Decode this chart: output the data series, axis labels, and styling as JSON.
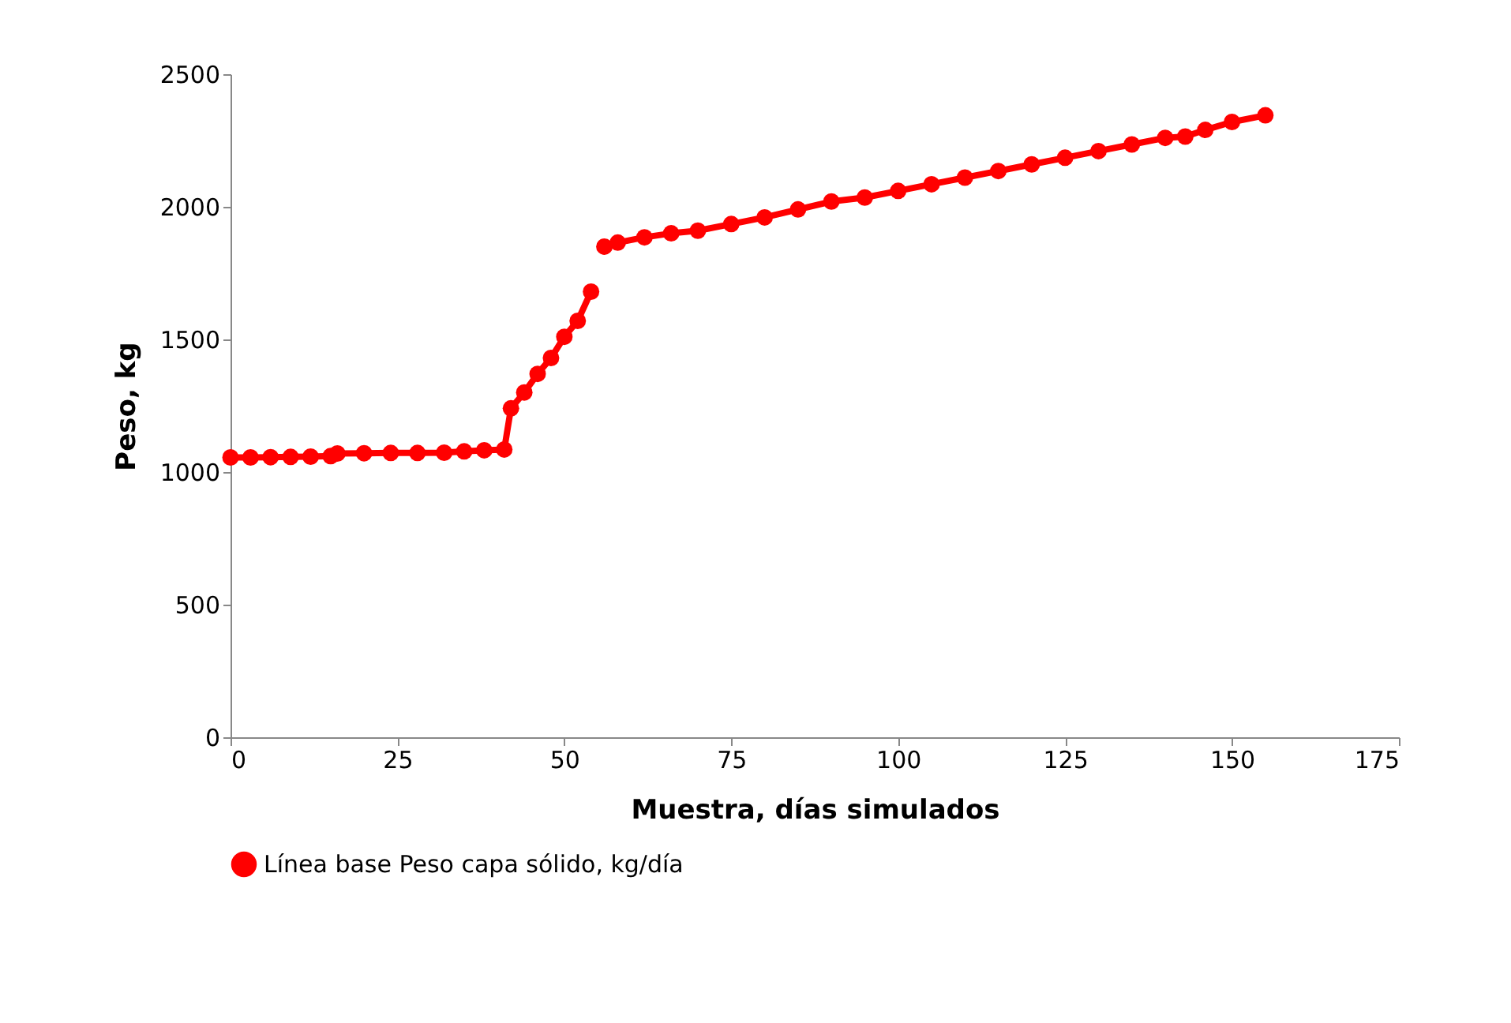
{
  "chart_data": {
    "type": "line",
    "xlabel": "Muestra, días simulados",
    "ylabel": "Peso, kg",
    "x": [
      0,
      3,
      6,
      9,
      12,
      15,
      16,
      20,
      24,
      28,
      32,
      35,
      38,
      41,
      42,
      44,
      46,
      48,
      50,
      52,
      54,
      55,
      56,
      58,
      62,
      66,
      70,
      75,
      80,
      85,
      90,
      95,
      100,
      105,
      110,
      115,
      120,
      125,
      130,
      135,
      140,
      143,
      146,
      150,
      155
    ],
    "series": [
      {
        "name": "Línea base Peso capa sólido, kg/día",
        "color": "#ff0000",
        "values": [
          1055,
          1055,
          1056,
          1057,
          1058,
          1060,
          1070,
          1071,
          1072,
          1072,
          1073,
          1078,
          1082,
          1085,
          1240,
          1300,
          1370,
          1430,
          1510,
          1570,
          1680,
          null,
          1850,
          1865,
          1885,
          1900,
          1910,
          1935,
          1960,
          1990,
          2020,
          2035,
          2060,
          2085,
          2110,
          2135,
          2160,
          2185,
          2210,
          2235,
          2260,
          2265,
          2290,
          2320,
          2345
        ]
      }
    ],
    "xlim": [
      0,
      175
    ],
    "xticks": [
      0,
      25,
      50,
      75,
      100,
      125,
      150,
      175
    ],
    "ylim": [
      0,
      2500
    ],
    "yticks": [
      0,
      500,
      1000,
      1500,
      2000,
      2500
    ],
    "grid": false,
    "legend": "bottom",
    "marker": "circle",
    "line_style": "solid"
  }
}
